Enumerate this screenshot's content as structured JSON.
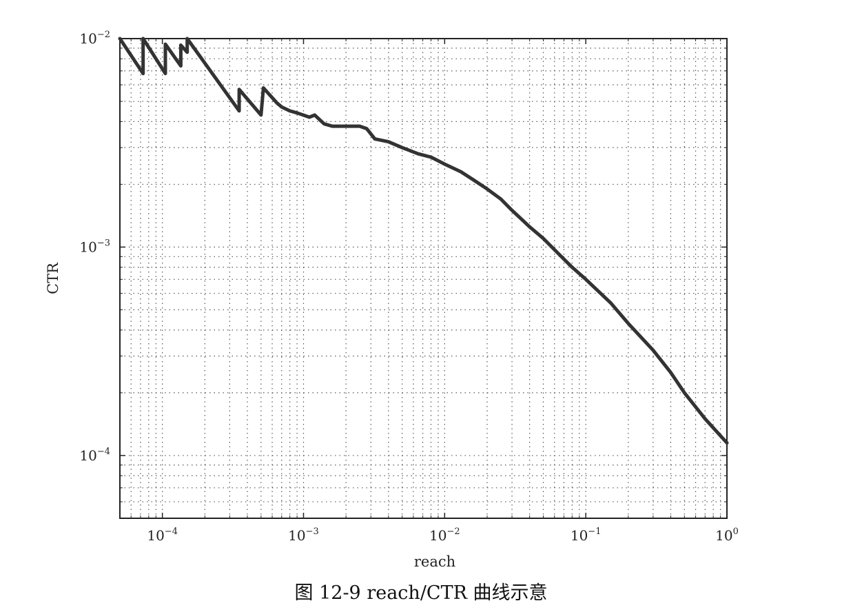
{
  "caption": "图 12-9 reach/CTR 曲线示意",
  "chart_data": {
    "type": "line",
    "xlabel": "reach",
    "ylabel": "CTR",
    "x_scale": "log",
    "y_scale": "log",
    "xlim": [
      5e-05,
      1
    ],
    "ylim": [
      5e-05,
      0.01
    ],
    "x_ticks": [
      {
        "value": 0.0001,
        "base": "10",
        "exp": "−4"
      },
      {
        "value": 0.001,
        "base": "10",
        "exp": "−3"
      },
      {
        "value": 0.01,
        "base": "10",
        "exp": "−2"
      },
      {
        "value": 0.1,
        "base": "10",
        "exp": "−1"
      },
      {
        "value": 1,
        "base": "10",
        "exp": "0"
      }
    ],
    "y_ticks": [
      {
        "value": 0.0001,
        "base": "10",
        "exp": "−4"
      },
      {
        "value": 0.001,
        "base": "10",
        "exp": "−3"
      },
      {
        "value": 0.01,
        "base": "10",
        "exp": "−2"
      }
    ],
    "grid": true,
    "series": [
      {
        "line_color": "#333333",
        "points": [
          [
            5e-05,
            0.01
          ],
          [
            7.3e-05,
            0.0068
          ],
          [
            7.3e-05,
            0.01
          ],
          [
            0.000105,
            0.0068
          ],
          [
            0.000105,
            0.0094
          ],
          [
            0.000135,
            0.0074
          ],
          [
            0.000135,
            0.0093
          ],
          [
            0.00015,
            0.0086
          ],
          [
            0.00015,
            0.01
          ],
          [
            0.00035,
            0.0045
          ],
          [
            0.00035,
            0.0057
          ],
          [
            0.0005,
            0.0043
          ],
          [
            0.00052,
            0.0058
          ],
          [
            0.00065,
            0.0049
          ],
          [
            0.0007,
            0.0047
          ],
          [
            0.0008,
            0.0045
          ],
          [
            0.0009,
            0.0044
          ],
          [
            0.0011,
            0.0042
          ],
          [
            0.0012,
            0.0043
          ],
          [
            0.0014,
            0.0039
          ],
          [
            0.0016,
            0.0038
          ],
          [
            0.0019,
            0.0038
          ],
          [
            0.0025,
            0.0038
          ],
          [
            0.0028,
            0.0037
          ],
          [
            0.0032,
            0.0033
          ],
          [
            0.004,
            0.0032
          ],
          [
            0.005,
            0.003
          ],
          [
            0.0065,
            0.0028
          ],
          [
            0.008,
            0.0027
          ],
          [
            0.01,
            0.0025
          ],
          [
            0.013,
            0.0023
          ],
          [
            0.016,
            0.0021
          ],
          [
            0.02,
            0.0019
          ],
          [
            0.025,
            0.0017
          ],
          [
            0.03,
            0.0015
          ],
          [
            0.04,
            0.00125
          ],
          [
            0.05,
            0.0011
          ],
          [
            0.065,
            0.00092
          ],
          [
            0.08,
            0.0008
          ],
          [
            0.1,
            0.0007
          ],
          [
            0.15,
            0.00054
          ],
          [
            0.2,
            0.00043
          ],
          [
            0.3,
            0.00032
          ],
          [
            0.4,
            0.00025
          ],
          [
            0.5,
            0.0002
          ],
          [
            0.7,
            0.00015
          ],
          [
            1.0,
            0.000115
          ]
        ]
      }
    ]
  }
}
